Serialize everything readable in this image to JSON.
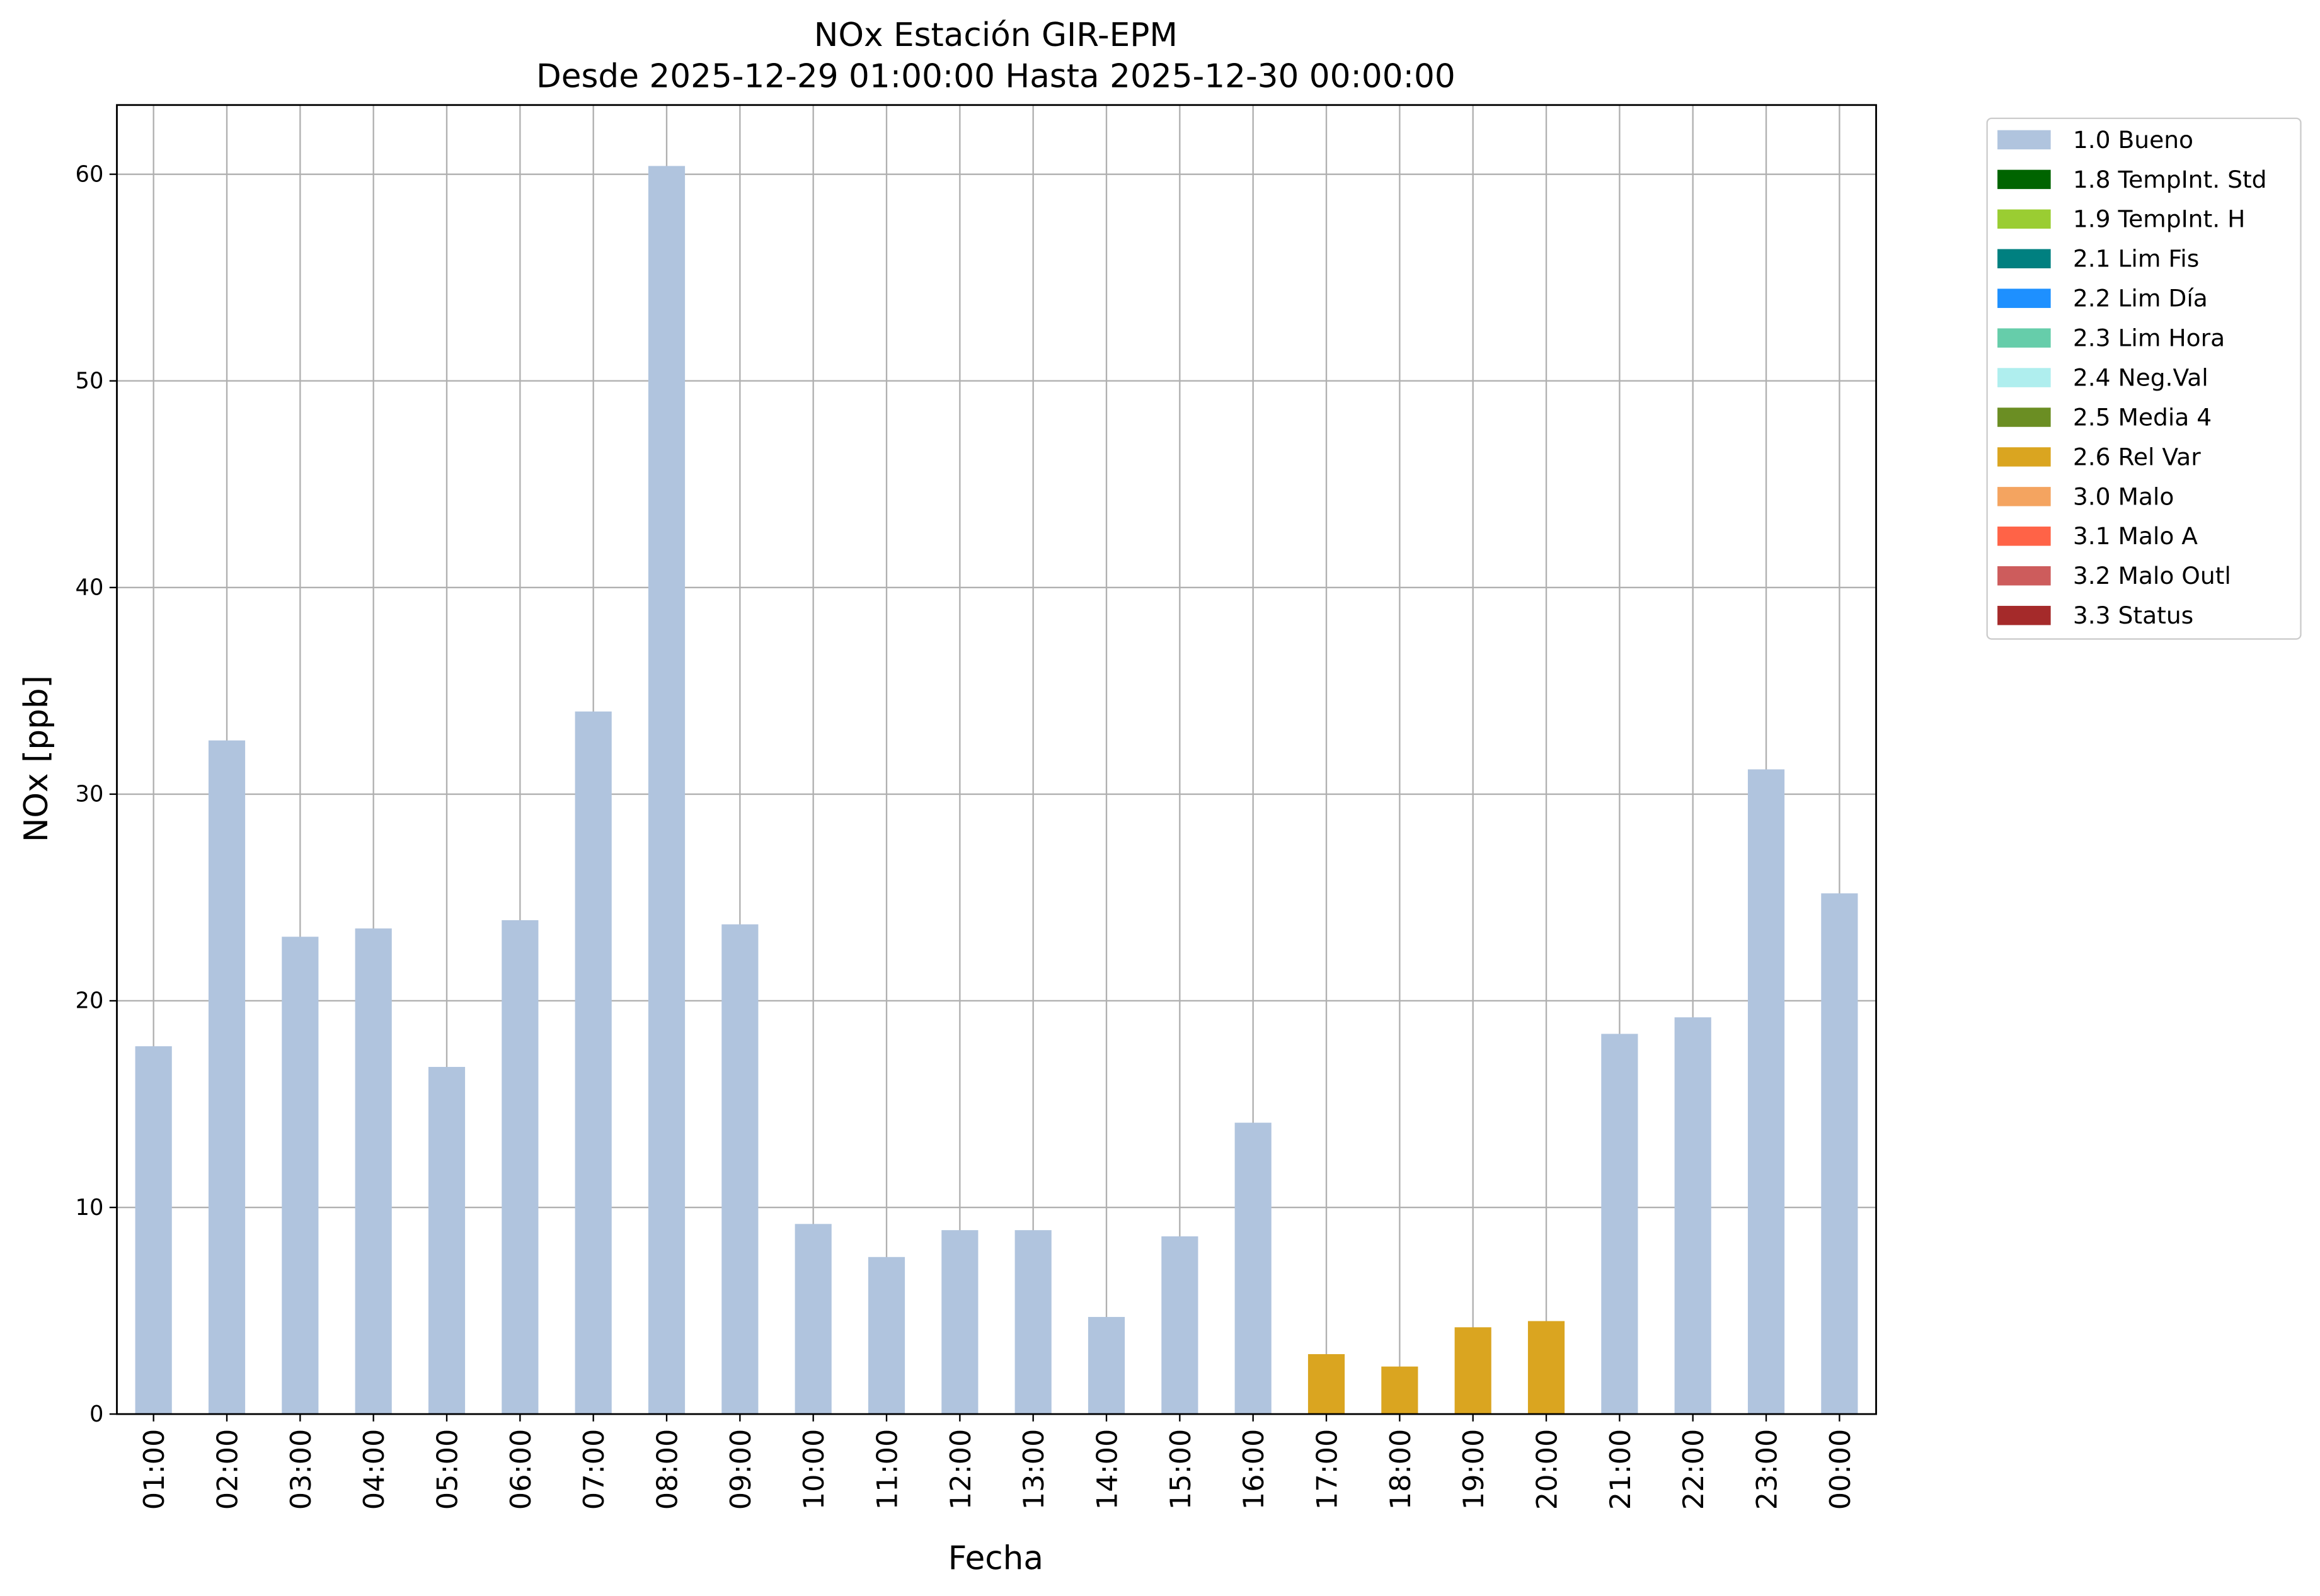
{
  "chart_data": {
    "type": "bar",
    "stacked": true,
    "title": "NOx Estación GIR-EPM",
    "subtitle": "Desde 2025-12-29 01:00:00 Hasta 2025-12-30 00:00:00",
    "x_label": "Fecha",
    "y_label": "NOx [ppb]",
    "categories": [
      "01:00",
      "02:00",
      "03:00",
      "04:00",
      "05:00",
      "06:00",
      "07:00",
      "08:00",
      "09:00",
      "10:00",
      "11:00",
      "12:00",
      "13:00",
      "14:00",
      "15:00",
      "16:00",
      "17:00",
      "18:00",
      "19:00",
      "20:00",
      "21:00",
      "22:00",
      "23:00",
      "00:00"
    ],
    "series": [
      {
        "name": "1.0 Bueno",
        "color": "#b0c4de",
        "values": [
          17.8,
          32.6,
          23.1,
          23.5,
          16.8,
          23.9,
          34.0,
          60.4,
          23.7,
          9.2,
          7.6,
          8.9,
          8.9,
          4.7,
          8.6,
          14.1,
          null,
          null,
          null,
          null,
          18.4,
          19.2,
          31.2,
          25.2
        ]
      },
      {
        "name": "1.8 TempInt. Std",
        "color": "#006400",
        "values": [
          null,
          null,
          null,
          null,
          null,
          null,
          null,
          null,
          null,
          null,
          null,
          null,
          null,
          null,
          null,
          null,
          null,
          null,
          null,
          null,
          null,
          null,
          null,
          null
        ]
      },
      {
        "name": "1.9 TempInt. H",
        "color": "#9acd32",
        "values": [
          null,
          null,
          null,
          null,
          null,
          null,
          null,
          null,
          null,
          null,
          null,
          null,
          null,
          null,
          null,
          null,
          null,
          null,
          null,
          null,
          null,
          null,
          null,
          null
        ]
      },
      {
        "name": "2.1 Lim Fis",
        "color": "#008080",
        "values": [
          null,
          null,
          null,
          null,
          null,
          null,
          null,
          null,
          null,
          null,
          null,
          null,
          null,
          null,
          null,
          null,
          null,
          null,
          null,
          null,
          null,
          null,
          null,
          null
        ]
      },
      {
        "name": "2.2 Lim Día",
        "color": "#1e90ff",
        "values": [
          null,
          null,
          null,
          null,
          null,
          null,
          null,
          null,
          null,
          null,
          null,
          null,
          null,
          null,
          null,
          null,
          null,
          null,
          null,
          null,
          null,
          null,
          null,
          null
        ]
      },
      {
        "name": "2.3 Lim Hora",
        "color": "#66cdaa",
        "values": [
          null,
          null,
          null,
          null,
          null,
          null,
          null,
          null,
          null,
          null,
          null,
          null,
          null,
          null,
          null,
          null,
          null,
          null,
          null,
          null,
          null,
          null,
          null,
          null
        ]
      },
      {
        "name": "2.4 Neg.Val",
        "color": "#afeeee",
        "values": [
          null,
          null,
          null,
          null,
          null,
          null,
          null,
          null,
          null,
          null,
          null,
          null,
          null,
          null,
          null,
          null,
          null,
          null,
          null,
          null,
          null,
          null,
          null,
          null
        ]
      },
      {
        "name": "2.5 Media 4",
        "color": "#6b8e23",
        "values": [
          null,
          null,
          null,
          null,
          null,
          null,
          null,
          null,
          null,
          null,
          null,
          null,
          null,
          null,
          null,
          null,
          null,
          null,
          null,
          null,
          null,
          null,
          null,
          null
        ]
      },
      {
        "name": "2.6 Rel Var",
        "color": "#daa520",
        "values": [
          null,
          null,
          null,
          null,
          null,
          null,
          null,
          null,
          null,
          null,
          null,
          null,
          null,
          null,
          null,
          null,
          2.9,
          2.3,
          4.2,
          4.5,
          null,
          null,
          null,
          null
        ]
      },
      {
        "name": "3.0 Malo",
        "color": "#f4a460",
        "values": [
          null,
          null,
          null,
          null,
          null,
          null,
          null,
          null,
          null,
          null,
          null,
          null,
          null,
          null,
          null,
          null,
          null,
          null,
          null,
          null,
          null,
          null,
          null,
          null
        ]
      },
      {
        "name": "3.1 Malo A",
        "color": "#ff6347",
        "values": [
          null,
          null,
          null,
          null,
          null,
          null,
          null,
          null,
          null,
          null,
          null,
          null,
          null,
          null,
          null,
          null,
          null,
          null,
          null,
          null,
          null,
          null,
          null,
          null
        ]
      },
      {
        "name": "3.2 Malo Outl",
        "color": "#cd5c5c",
        "values": [
          null,
          null,
          null,
          null,
          null,
          null,
          null,
          null,
          null,
          null,
          null,
          null,
          null,
          null,
          null,
          null,
          null,
          null,
          null,
          null,
          null,
          null,
          null,
          null
        ]
      },
      {
        "name": "3.3 Status",
        "color": "#a52a2a",
        "values": [
          null,
          null,
          null,
          null,
          null,
          null,
          null,
          null,
          null,
          null,
          null,
          null,
          null,
          null,
          null,
          null,
          null,
          null,
          null,
          null,
          null,
          null,
          null,
          null
        ]
      }
    ],
    "ylim": [
      0,
      63.35
    ],
    "yticks": [
      0,
      10,
      20,
      30,
      40,
      50,
      60
    ],
    "grid": true,
    "legend": "outside-right"
  }
}
